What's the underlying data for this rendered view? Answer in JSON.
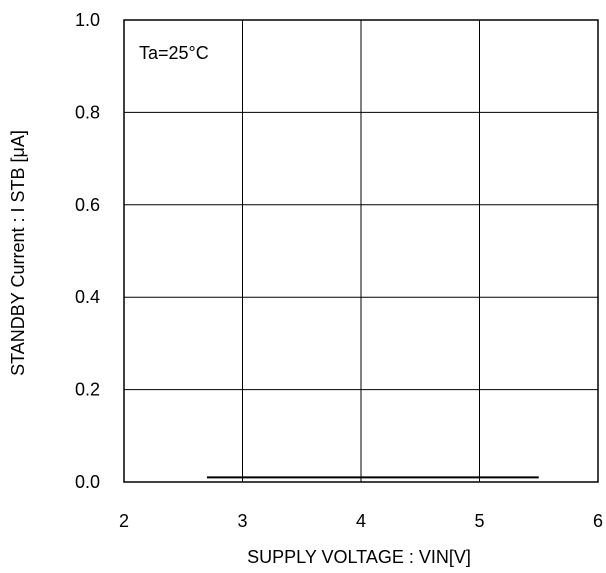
{
  "chart_data": {
    "type": "line",
    "title": "",
    "xlabel": "SUPPLY VOLTAGE : VIN[V]",
    "ylabel": "STANDBY Current : I  STB [μA]",
    "xlim": [
      2,
      6
    ],
    "ylim": [
      0.0,
      1.0
    ],
    "x_ticks": [
      2,
      3,
      4,
      5,
      6
    ],
    "x_tick_labels": [
      "2",
      "3",
      "4",
      "5",
      "6"
    ],
    "y_ticks": [
      0.0,
      0.2,
      0.4,
      0.6,
      0.8,
      1.0
    ],
    "y_tick_labels": [
      "0.0",
      "0.2",
      "0.4",
      "0.6",
      "0.8",
      "1.0"
    ],
    "grid": true,
    "annotation": "Ta=25°C",
    "series": [
      {
        "x": [
          2.7,
          5.5
        ],
        "y": [
          0.01,
          0.01
        ],
        "color": "#000000"
      }
    ]
  }
}
